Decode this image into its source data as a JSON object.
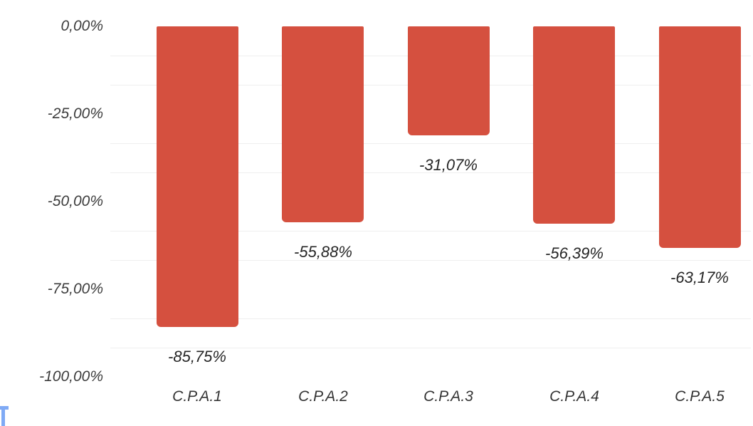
{
  "chart_data": {
    "type": "bar",
    "orientation": "vertical-negative",
    "title": "",
    "xlabel": "",
    "ylabel": "",
    "categories": [
      "C.P.A.1",
      "C.P.A.2",
      "C.P.A.3",
      "C.P.A.4",
      "C.P.A.5"
    ],
    "values": [
      -85.75,
      -55.88,
      -31.07,
      -56.39,
      -63.17
    ],
    "value_labels": [
      "-85,75%",
      "-55,88%",
      "-31,07%",
      "-56,39%",
      "-63,17%"
    ],
    "y_ticks": [
      {
        "value": 0,
        "label": "0,00%"
      },
      {
        "value": -25,
        "label": "-25,00%"
      },
      {
        "value": -50,
        "label": "-50,00%"
      },
      {
        "value": -75,
        "label": "-75,00%"
      },
      {
        "value": -100,
        "label": "-100,00%"
      }
    ],
    "ylim": [
      -100,
      0
    ],
    "grid": "minor horizontal gridlines at thirds between major ticks, majors not drawn",
    "minor_gridlines_per_major_interval": 2,
    "legend": "none",
    "colors": {
      "bar": "#d5503f",
      "gridline": "#efefef",
      "axis_tick_text": "#3d3d3d",
      "value_label_text": "#262626",
      "category_label_text": "#333333"
    }
  },
  "decorations": {
    "corner_glyph": {
      "description": "cropped light-blue letter T at bottom-left corner",
      "color": "#7faaf5"
    }
  }
}
